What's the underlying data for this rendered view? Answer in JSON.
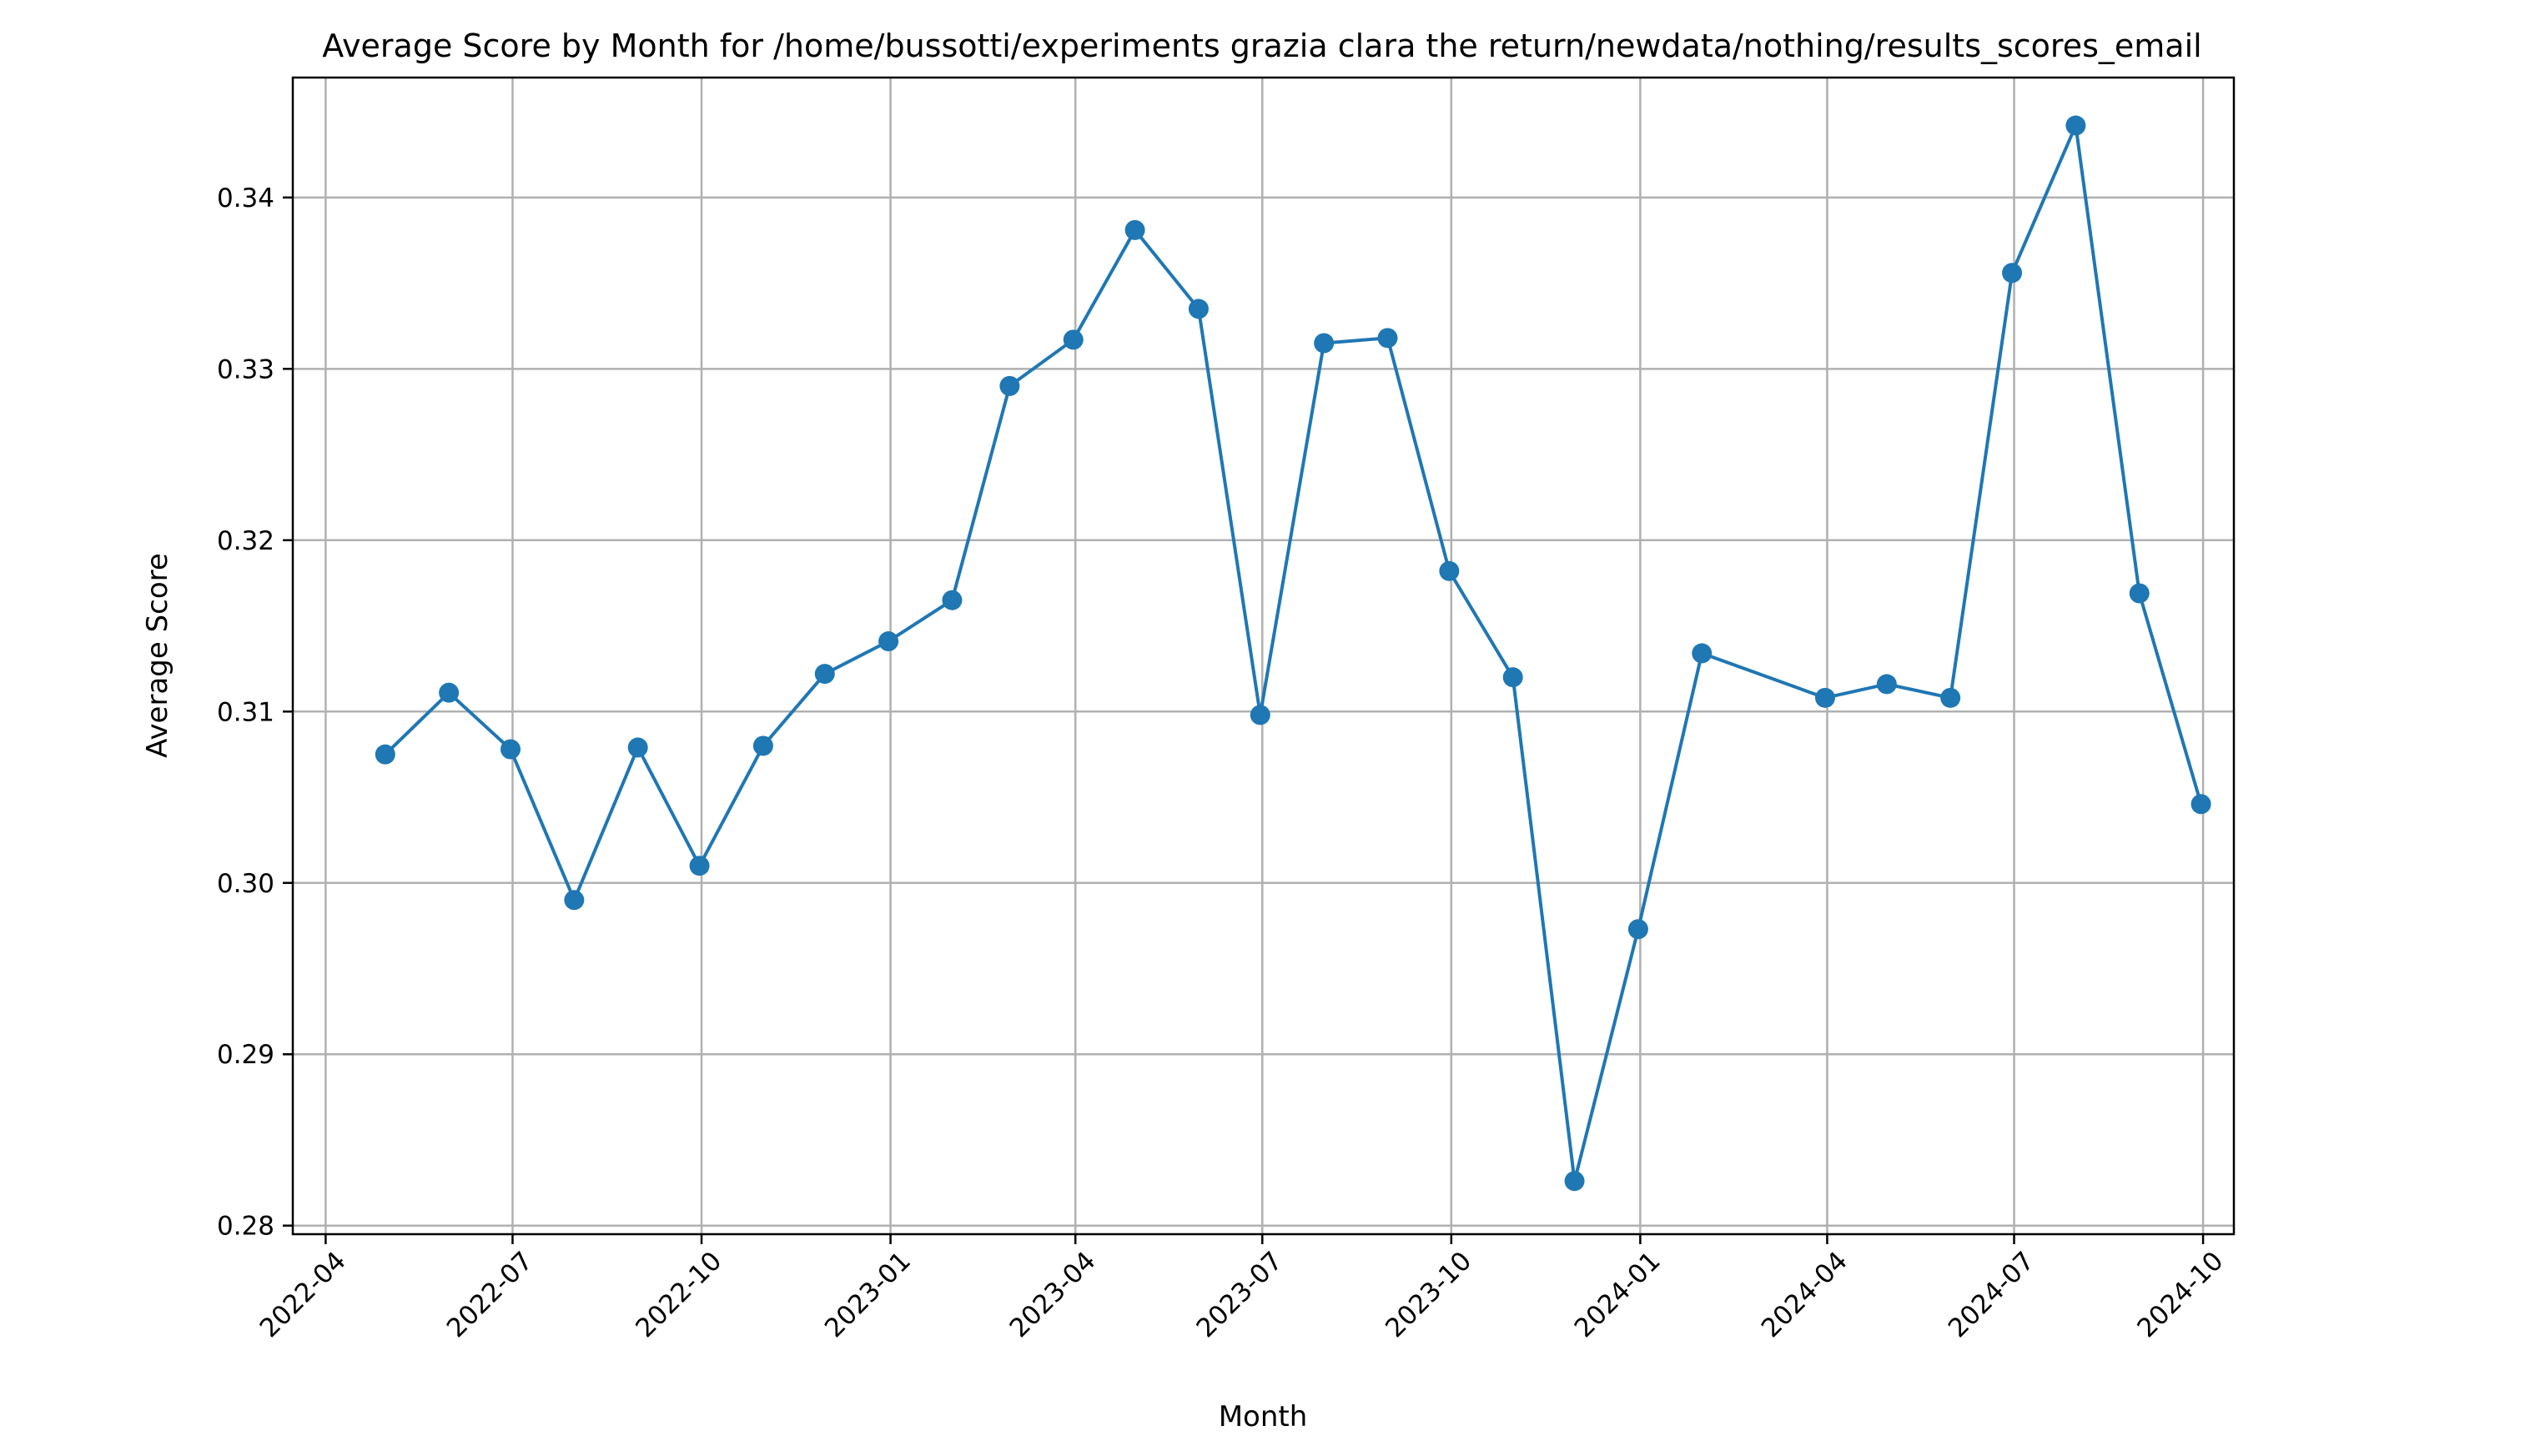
{
  "chart_data": {
    "type": "line",
    "title": "Average Score by Month for /home/bussotti/experiments grazia clara the return/newdata/nothing/results_scores_email",
    "xlabel": "Month",
    "ylabel": "Average Score",
    "x_ticks": [
      "2022-04",
      "2022-07",
      "2022-10",
      "2023-01",
      "2023-04",
      "2023-07",
      "2023-10",
      "2024-01",
      "2024-04",
      "2024-07",
      "2024-10"
    ],
    "y_ticks": [
      "0.28",
      "0.29",
      "0.30",
      "0.31",
      "0.32",
      "0.33",
      "0.34"
    ],
    "ylim": [
      0.2795,
      0.347
    ],
    "xlim": [
      "2022-03-16",
      "2024-10-16"
    ],
    "grid": true,
    "legend": "none",
    "marker": "circle",
    "series": [
      {
        "color": "#1f77b4",
        "points": [
          {
            "x": "2022-04-30",
            "y": 0.3075
          },
          {
            "x": "2022-05-31",
            "y": 0.3111
          },
          {
            "x": "2022-06-30",
            "y": 0.3078
          },
          {
            "x": "2022-07-31",
            "y": 0.299
          },
          {
            "x": "2022-08-31",
            "y": 0.3079
          },
          {
            "x": "2022-09-30",
            "y": 0.301
          },
          {
            "x": "2022-10-31",
            "y": 0.308
          },
          {
            "x": "2022-11-30",
            "y": 0.3122
          },
          {
            "x": "2022-12-31",
            "y": 0.3141
          },
          {
            "x": "2023-01-31",
            "y": 0.3165
          },
          {
            "x": "2023-02-28",
            "y": 0.329
          },
          {
            "x": "2023-03-31",
            "y": 0.3317
          },
          {
            "x": "2023-04-30",
            "y": 0.3381
          },
          {
            "x": "2023-05-31",
            "y": 0.3335
          },
          {
            "x": "2023-06-30",
            "y": 0.3098
          },
          {
            "x": "2023-07-31",
            "y": 0.3315
          },
          {
            "x": "2023-08-31",
            "y": 0.3318
          },
          {
            "x": "2023-09-30",
            "y": 0.3182
          },
          {
            "x": "2023-10-31",
            "y": 0.312
          },
          {
            "x": "2023-11-30",
            "y": 0.2826
          },
          {
            "x": "2023-12-31",
            "y": 0.2973
          },
          {
            "x": "2024-01-31",
            "y": 0.3134
          },
          {
            "x": "2024-03-31",
            "y": 0.3108
          },
          {
            "x": "2024-04-30",
            "y": 0.3116
          },
          {
            "x": "2024-05-31",
            "y": 0.3108
          },
          {
            "x": "2024-06-30",
            "y": 0.3356
          },
          {
            "x": "2024-07-31",
            "y": 0.3442
          },
          {
            "x": "2024-08-31",
            "y": 0.3169
          },
          {
            "x": "2024-09-30",
            "y": 0.3046
          }
        ]
      }
    ]
  }
}
